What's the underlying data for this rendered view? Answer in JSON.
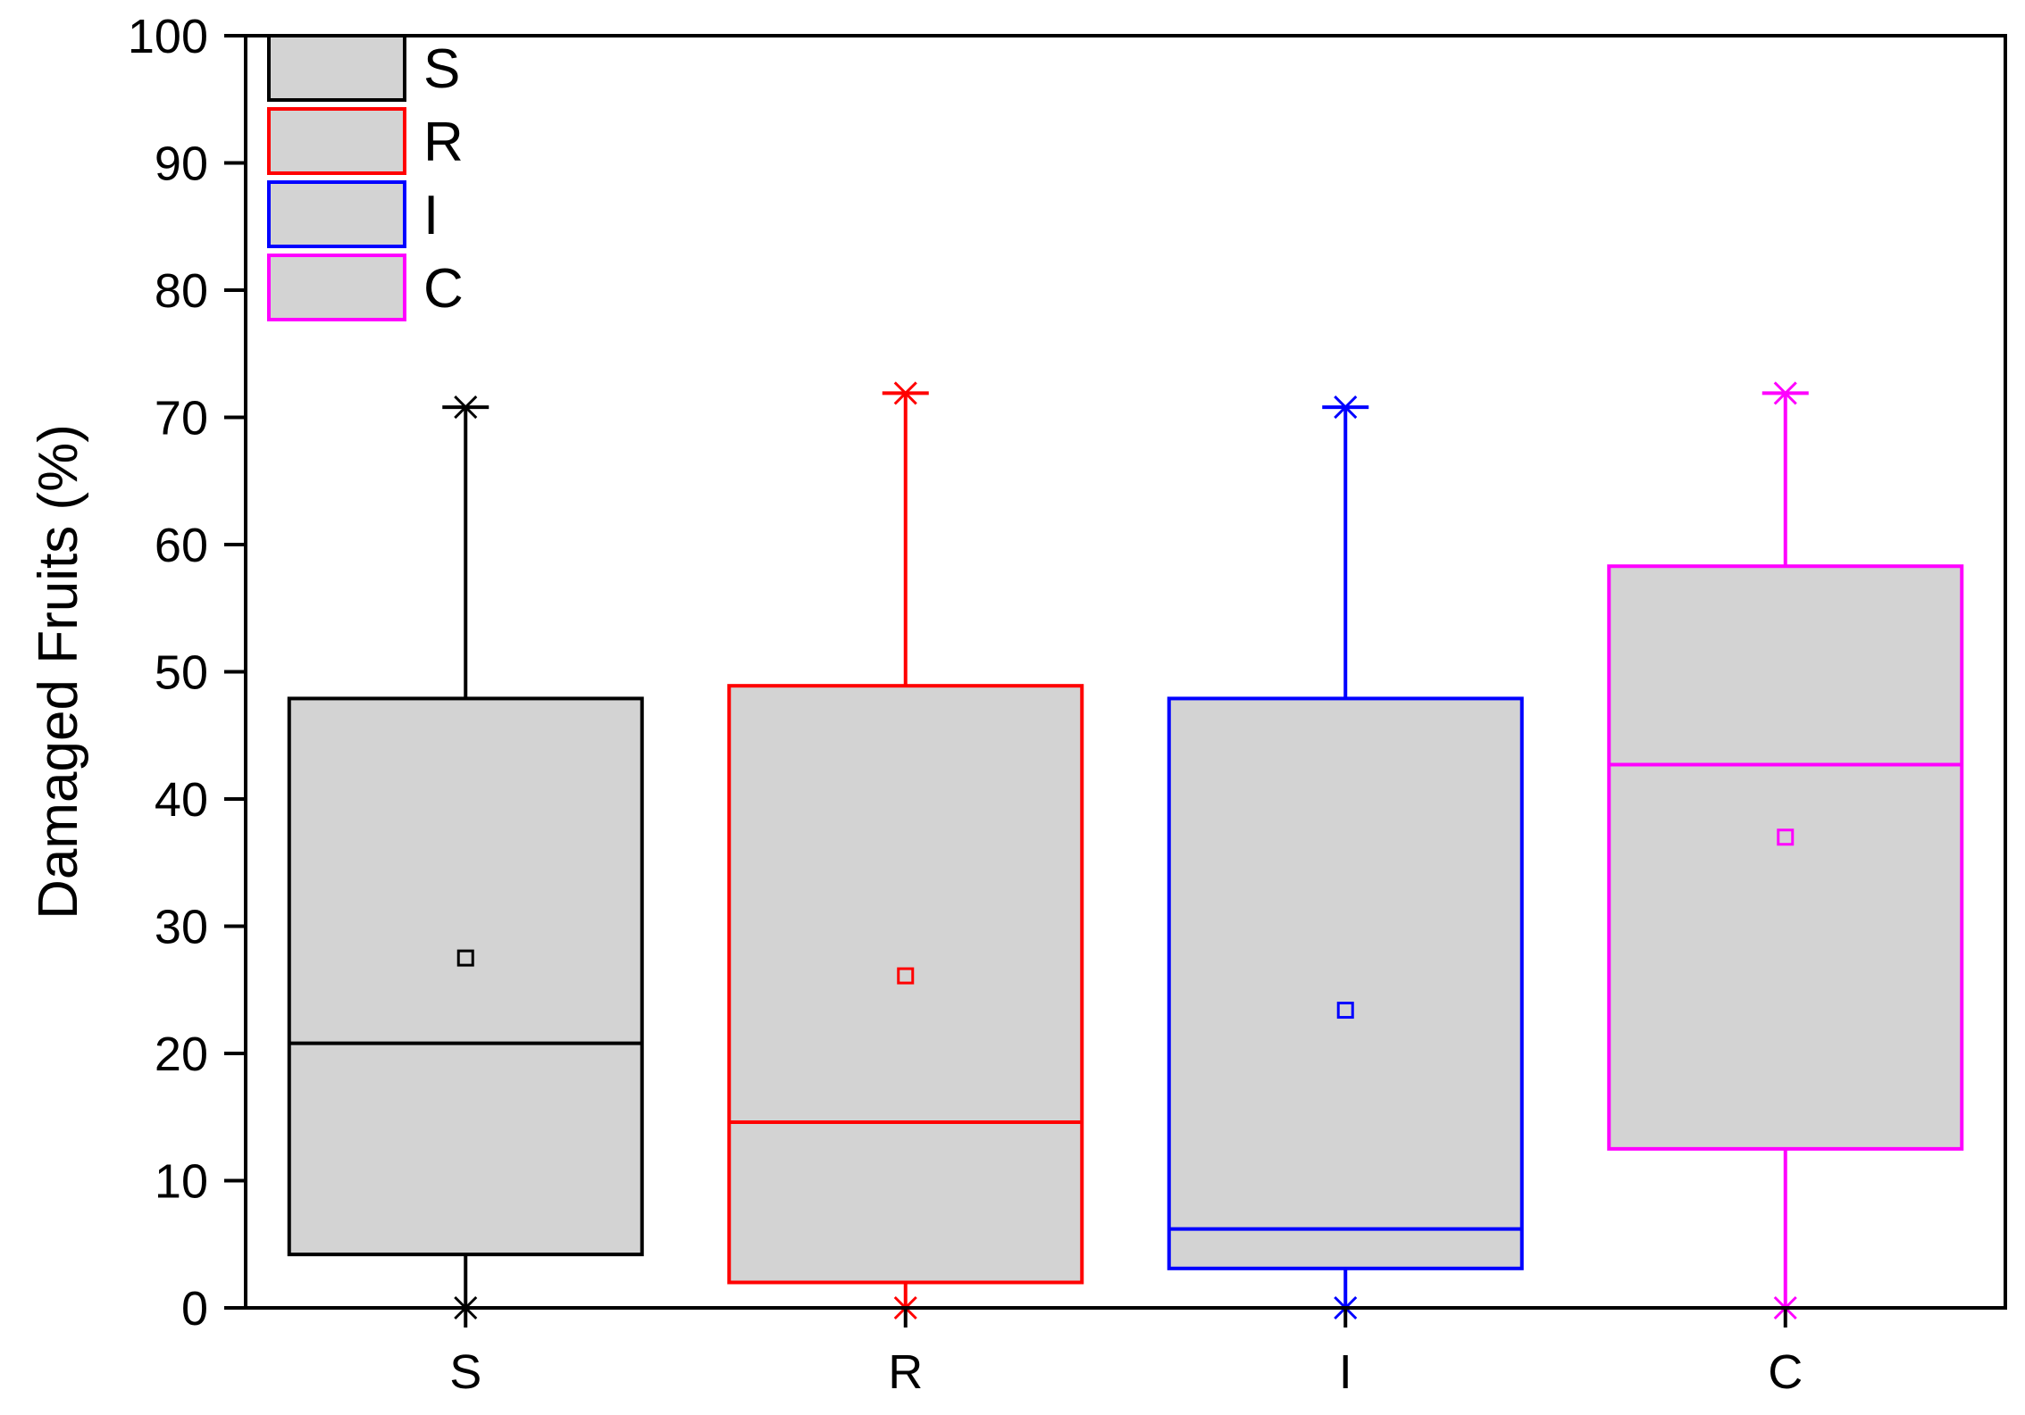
{
  "chart_data": {
    "type": "box",
    "title": "",
    "xlabel": "",
    "ylabel": "Damaged Fruits (%)",
    "ylim": [
      0,
      100
    ],
    "yticks": [
      0,
      10,
      20,
      30,
      40,
      50,
      60,
      70,
      80,
      90,
      100
    ],
    "ytick_labels": [
      "0",
      "10",
      "20",
      "30",
      "40",
      "50",
      "60",
      "70",
      "80",
      "90",
      "100"
    ],
    "categories": [
      "S",
      "R",
      "I",
      "C"
    ],
    "grid": false,
    "legend": {
      "placement": "top-left",
      "entries": [
        "S",
        "R",
        "I",
        "C"
      ]
    },
    "series": [
      {
        "name": "S",
        "color": "#000000",
        "fill": "#d3d3d3",
        "min": 0,
        "q1": 4.2,
        "median": 20.8,
        "q3": 47.9,
        "max": 70.8,
        "mean": 27.5
      },
      {
        "name": "R",
        "color": "#ff0000",
        "fill": "#d3d3d3",
        "min": 0,
        "q1": 2.0,
        "median": 14.6,
        "q3": 48.9,
        "max": 71.9,
        "mean": 26.1
      },
      {
        "name": "I",
        "color": "#0000ff",
        "fill": "#d3d3d3",
        "min": 0,
        "q1": 3.1,
        "median": 6.2,
        "q3": 47.9,
        "max": 70.8,
        "mean": 23.4
      },
      {
        "name": "C",
        "color": "#ff00ff",
        "fill": "#d3d3d3",
        "min": 0,
        "q1": 12.5,
        "median": 42.7,
        "q3": 58.3,
        "max": 71.9,
        "mean": 37.0
      }
    ]
  }
}
